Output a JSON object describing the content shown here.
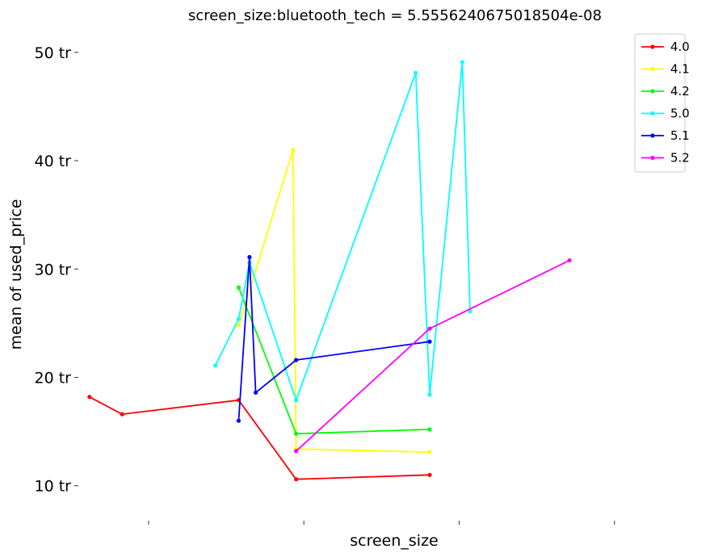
{
  "chart_data": {
    "type": "line",
    "title": "screen_size:bluetooth_tech = 5.5556240675018504e-08",
    "xlabel": "screen_size",
    "ylabel": "mean of used_price",
    "xlim": [
      8.6,
      12.5
    ],
    "ylim": [
      7,
      52
    ],
    "x_ticks": [
      9,
      10,
      11,
      12
    ],
    "y_ticks": [
      {
        "value": 10,
        "label": "10 tr"
      },
      {
        "value": 20,
        "label": "20 tr"
      },
      {
        "value": 30,
        "label": "30 tr"
      },
      {
        "value": 40,
        "label": "40 tr"
      },
      {
        "value": 50,
        "label": "50 tr"
      }
    ],
    "grid": false,
    "legend_position": "top-right",
    "series": [
      {
        "name": "4.0",
        "color": "#ff0000",
        "points": [
          [
            8.62,
            18.2
          ],
          [
            8.83,
            16.6
          ],
          [
            9.58,
            17.9
          ],
          [
            9.95,
            10.6
          ],
          [
            10.81,
            11.0
          ]
        ]
      },
      {
        "name": "4.1",
        "color": "#ffff00",
        "points": [
          [
            9.58,
            24.8
          ],
          [
            9.93,
            41.0
          ],
          [
            9.95,
            13.4
          ],
          [
            10.81,
            13.1
          ]
        ]
      },
      {
        "name": "4.2",
        "color": "#00ff00",
        "points": [
          [
            9.58,
            28.3
          ],
          [
            9.95,
            14.8
          ],
          [
            10.81,
            15.2
          ]
        ]
      },
      {
        "name": "5.0",
        "color": "#00ffff",
        "points": [
          [
            9.43,
            21.1
          ],
          [
            9.58,
            25.4
          ],
          [
            9.65,
            30.6
          ],
          [
            9.95,
            17.9
          ],
          [
            10.72,
            48.1
          ],
          [
            10.81,
            18.4
          ],
          [
            11.02,
            49.1
          ],
          [
            11.07,
            26.1
          ]
        ]
      },
      {
        "name": "5.1",
        "color": "#0000ff",
        "points": [
          [
            9.58,
            16.0
          ],
          [
            9.65,
            31.1
          ],
          [
            9.69,
            18.6
          ],
          [
            9.95,
            21.6
          ],
          [
            10.81,
            23.3
          ]
        ]
      },
      {
        "name": "5.2",
        "color": "#ff00ff",
        "points": [
          [
            9.95,
            13.2
          ],
          [
            10.81,
            24.5
          ],
          [
            11.71,
            30.8
          ]
        ]
      }
    ]
  }
}
